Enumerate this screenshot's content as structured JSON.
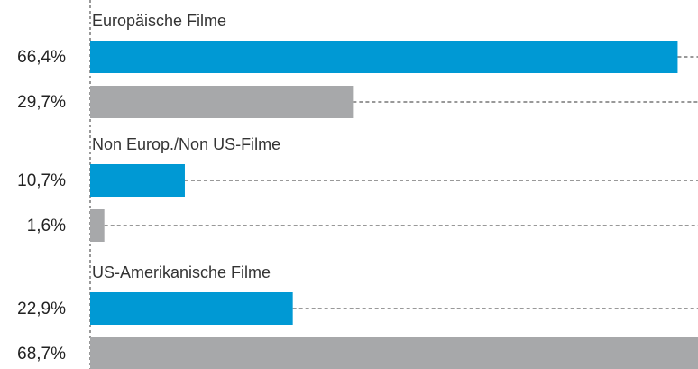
{
  "chart_data": {
    "type": "bar",
    "orientation": "horizontal",
    "categories": [
      "Europäische Filme",
      "Non Europ./Non US-Filme",
      "US-Amerikanische Filme"
    ],
    "series": [
      {
        "color": "#0099d4",
        "values": [
          66.4,
          10.7,
          22.9
        ],
        "value_labels": [
          "66,4%",
          "10,7%",
          "22,9%"
        ]
      },
      {
        "color": "#a7a8aa",
        "values": [
          29.7,
          1.6,
          68.7
        ],
        "value_labels": [
          "29,7%",
          "1,6%",
          "68,7%"
        ]
      }
    ],
    "xlim": [
      0,
      68.7
    ]
  }
}
